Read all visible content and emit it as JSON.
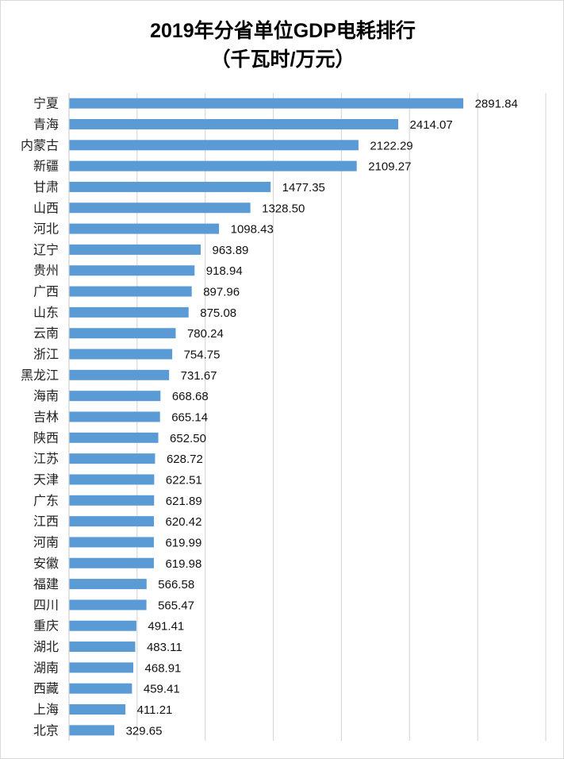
{
  "chart_data": {
    "type": "bar",
    "orientation": "horizontal",
    "title": "2019年分省单位GDP电耗排行",
    "subtitle": "（千瓦时/万元）",
    "categories": [
      "宁夏",
      "青海",
      "内蒙古",
      "新疆",
      "甘肃",
      "山西",
      "河北",
      "辽宁",
      "贵州",
      "广西",
      "山东",
      "云南",
      "浙江",
      "黑龙江",
      "海南",
      "吉林",
      "陕西",
      "江苏",
      "天津",
      "广东",
      "江西",
      "河南",
      "安徽",
      "福建",
      "四川",
      "重庆",
      "湖北",
      "湖南",
      "西藏",
      "上海",
      "北京"
    ],
    "values": [
      2891.84,
      2414.07,
      2122.29,
      2109.27,
      1477.35,
      1328.5,
      1098.43,
      963.89,
      918.94,
      897.96,
      875.08,
      780.24,
      754.75,
      731.67,
      668.68,
      665.14,
      652.5,
      628.72,
      622.51,
      621.89,
      620.42,
      619.99,
      619.98,
      566.58,
      565.47,
      491.41,
      483.11,
      468.91,
      459.41,
      411.21,
      329.65
    ],
    "labels": [
      "2891.84",
      "2414.07",
      "2122.29",
      "2109.27",
      "1477.35",
      "1328.50",
      "1098.43",
      "963.89",
      "918.94",
      "897.96",
      "875.08",
      "780.24",
      "754.75",
      "731.67",
      "668.68",
      "665.14",
      "652.50",
      "628.72",
      "622.51",
      "621.89",
      "620.42",
      "619.99",
      "619.98",
      "566.58",
      "565.47",
      "491.41",
      "483.11",
      "468.91",
      "459.41",
      "411.21",
      "329.65"
    ],
    "xlim": [
      0,
      3500
    ],
    "grid_step": 500,
    "grid": true,
    "bar_color": "#5b9bd5",
    "grid_color": "#d9d9d9",
    "xlabel": "",
    "ylabel": ""
  }
}
